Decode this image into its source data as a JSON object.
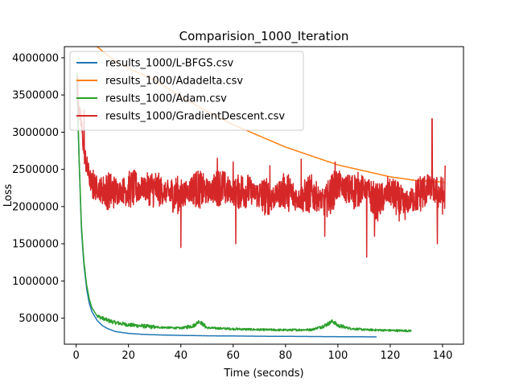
{
  "chart_data": {
    "type": "line",
    "title": "Comparision_1000_Iteration",
    "xlabel": "Time (seconds)",
    "ylabel": "Loss",
    "xlim": [
      -4.5,
      148
    ],
    "ylim": [
      150000,
      4150000
    ],
    "xticks": [
      0,
      20,
      40,
      60,
      80,
      100,
      120,
      140
    ],
    "yticks": [
      500000,
      1000000,
      1500000,
      2000000,
      2500000,
      3000000,
      3500000,
      4000000
    ],
    "xtick_labels": [
      "0",
      "20",
      "40",
      "60",
      "80",
      "100",
      "120",
      "140"
    ],
    "ytick_labels": [
      "500000",
      "1000000",
      "1500000",
      "2000000",
      "2500000",
      "3000000",
      "3500000",
      "4000000"
    ],
    "grid": false,
    "legend": "upper-left",
    "series": [
      {
        "name": "results_1000/L-BFGS.csv",
        "color": "#1f77b4",
        "x": [
          0.3,
          1,
          2,
          3,
          4,
          5,
          6,
          8,
          10,
          12,
          15,
          20,
          25,
          30,
          40,
          50,
          60,
          70,
          80,
          90,
          100,
          110,
          115
        ],
        "y": [
          3700000,
          2750000,
          1700000,
          1200000,
          900000,
          700000,
          590000,
          470000,
          400000,
          360000,
          320000,
          295000,
          283000,
          276000,
          268000,
          263000,
          260000,
          257000,
          255000,
          253000,
          251000,
          249000,
          248000
        ]
      },
      {
        "name": "results_1000/Adadelta.csv",
        "color": "#ff7f0e",
        "x": [
          8,
          15,
          20,
          30,
          40,
          50,
          60,
          70,
          80,
          90,
          100,
          110,
          120,
          130,
          140,
          141
        ],
        "y": [
          4150000,
          3950000,
          3860000,
          3700000,
          3480000,
          3280000,
          3100000,
          2950000,
          2800000,
          2680000,
          2560000,
          2480000,
          2400000,
          2350000,
          2330000,
          2320000
        ]
      },
      {
        "name": "results_1000/Adam.csv",
        "color": "#2ca02c",
        "x": [
          0.3,
          1,
          2,
          3,
          4,
          5,
          6,
          8,
          10,
          12,
          15,
          20,
          25,
          30,
          40,
          45,
          47,
          50,
          60,
          70,
          80,
          90,
          95,
          98,
          100,
          105,
          110,
          120,
          128
        ],
        "y": [
          3800000,
          2800000,
          1750000,
          1250000,
          950000,
          760000,
          640000,
          530000,
          500000,
          470000,
          440000,
          410000,
          395000,
          380000,
          365000,
          400000,
          460000,
          370000,
          355000,
          345000,
          340000,
          345000,
          400000,
          460000,
          400000,
          360000,
          345000,
          335000,
          330000
        ]
      },
      {
        "name": "results_1000/GradientDescent.csv",
        "color": "#d62728",
        "x": [
          0.5,
          1,
          2,
          3,
          4,
          5,
          6,
          8,
          10,
          15,
          20,
          25,
          30,
          35,
          40,
          45,
          50,
          55,
          60,
          65,
          70,
          75,
          80,
          85,
          90,
          95,
          100,
          105,
          110,
          115,
          120,
          125,
          130,
          135,
          140,
          141
        ],
        "y": [
          3700000,
          3300000,
          3100000,
          2750000,
          2550000,
          2400000,
          2300000,
          2250000,
          2220000,
          2200000,
          2230000,
          2250000,
          2240000,
          2180000,
          2150000,
          2250000,
          2200000,
          2270000,
          2180000,
          2230000,
          2150000,
          2120000,
          2220000,
          2100000,
          2180000,
          2050000,
          2300000,
          2200000,
          2250000,
          2050000,
          2200000,
          2000000,
          2150000,
          2250000,
          2150000,
          2100000
        ],
        "noise_amplitude": 260000,
        "spikes": [
          {
            "x": 3,
            "y": 3300000
          },
          {
            "x": 40,
            "y": 1450000
          },
          {
            "x": 54,
            "y": 2650000
          },
          {
            "x": 60,
            "y": 2600000
          },
          {
            "x": 61,
            "y": 1500000
          },
          {
            "x": 74,
            "y": 2550000
          },
          {
            "x": 86,
            "y": 2640000
          },
          {
            "x": 95,
            "y": 1600000
          },
          {
            "x": 99,
            "y": 2600000
          },
          {
            "x": 114,
            "y": 1600000
          },
          {
            "x": 111,
            "y": 1320000
          },
          {
            "x": 119,
            "y": 2400000
          },
          {
            "x": 136,
            "y": 3180000
          },
          {
            "x": 138,
            "y": 1500000
          },
          {
            "x": 141,
            "y": 2550000
          }
        ]
      }
    ]
  }
}
